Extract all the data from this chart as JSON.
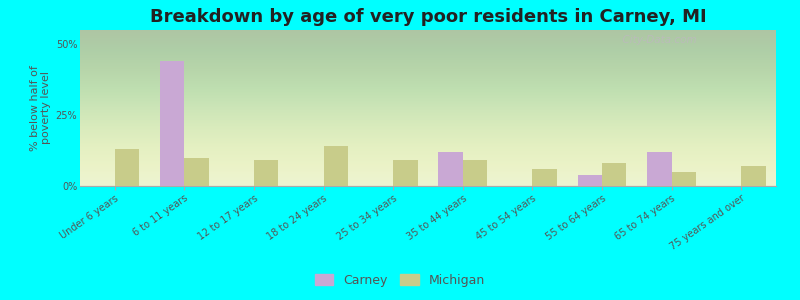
{
  "title": "Breakdown by age of very poor residents in Carney, MI",
  "ylabel": "% below half of\npoverty level",
  "categories": [
    "Under 6 years",
    "6 to 11 years",
    "12 to 17 years",
    "18 to 24 years",
    "25 to 34 years",
    "35 to 44 years",
    "45 to 54 years",
    "55 to 64 years",
    "65 to 74 years",
    "75 years and over"
  ],
  "carney_values": [
    0,
    44,
    0,
    0,
    0,
    12,
    0,
    4,
    12,
    0
  ],
  "michigan_values": [
    13,
    10,
    9,
    14,
    9,
    9,
    6,
    8,
    5,
    7
  ],
  "carney_color": "#c9a8d4",
  "michigan_color": "#c8cc8a",
  "background_color": "#00ffff",
  "title_fontsize": 13,
  "ylabel_fontsize": 8,
  "tick_fontsize": 7,
  "ylim": [
    0,
    55
  ],
  "yticks": [
    0,
    25,
    50
  ],
  "ytick_labels": [
    "0%",
    "25%",
    "50%"
  ],
  "bar_width": 0.35,
  "legend_carney": "Carney",
  "legend_michigan": "Michigan"
}
